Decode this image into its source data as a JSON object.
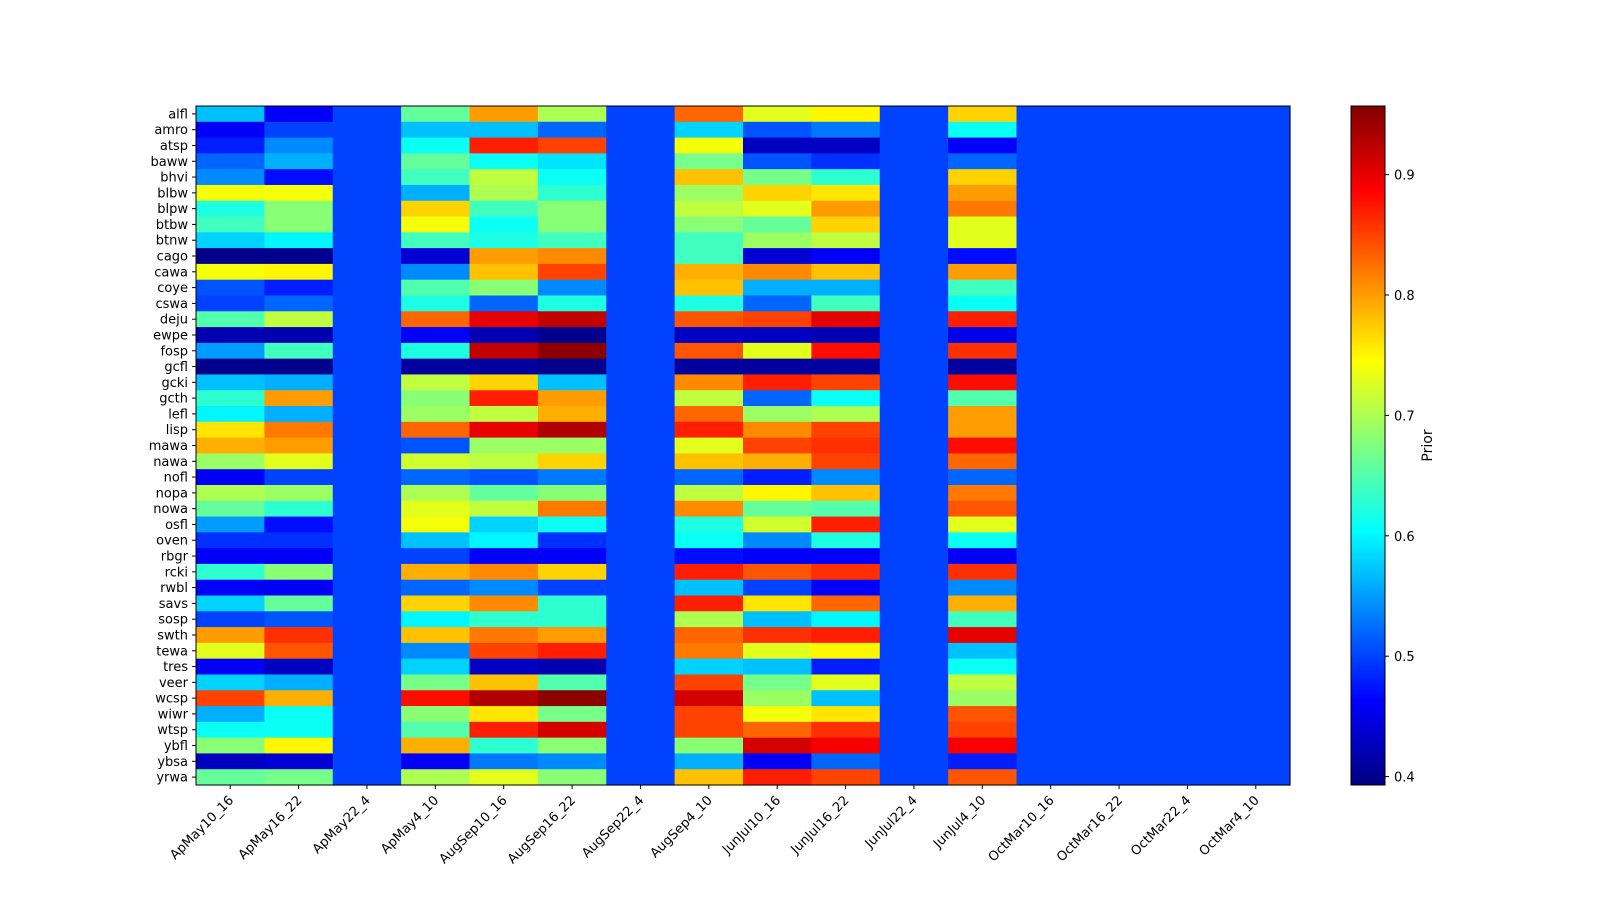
{
  "chart_data": {
    "type": "heatmap",
    "title": "",
    "xlabel": "",
    "ylabel": "",
    "colormap": "jet",
    "colorbar": {
      "label": "Prior",
      "range": [
        0.393,
        0.957
      ],
      "ticks": [
        0.4,
        0.5,
        0.6,
        0.7,
        0.8,
        0.9
      ],
      "tick_labels": [
        "0.4",
        "0.5",
        "0.6",
        "0.7",
        "0.8",
        "0.9"
      ]
    },
    "x_categories": [
      "ApMay10_16",
      "ApMay16_22",
      "ApMay22_4",
      "ApMay4_10",
      "AugSep10_16",
      "AugSep16_22",
      "AugSep22_4",
      "AugSep4_10",
      "JunJul10_16",
      "JunJul16_22",
      "JunJul22_4",
      "JunJul4_10",
      "OctMar10_16",
      "OctMar16_22",
      "OctMar22_4",
      "OctMar4_10"
    ],
    "y_categories": [
      "alfl",
      "amro",
      "atsp",
      "baww",
      "bhvi",
      "blbw",
      "blpw",
      "btbw",
      "btnw",
      "cago",
      "cawa",
      "coye",
      "cswa",
      "deju",
      "ewpe",
      "fosp",
      "gcfl",
      "gcki",
      "gcth",
      "lefl",
      "lisp",
      "mawa",
      "nawa",
      "nofl",
      "nopa",
      "nowa",
      "osfl",
      "oven",
      "rbgr",
      "rcki",
      "rwbl",
      "savs",
      "sosp",
      "swth",
      "tewa",
      "tres",
      "veer",
      "wcsp",
      "wiwr",
      "wtsp",
      "ybfl",
      "ybsa",
      "yrwa"
    ],
    "values": [
      [
        0.57,
        0.46,
        0.5,
        0.66,
        0.8,
        0.7,
        0.5,
        0.83,
        0.73,
        0.75,
        0.5,
        0.77,
        0.5,
        0.5,
        0.5,
        0.5
      ],
      [
        0.46,
        0.5,
        0.5,
        0.57,
        0.57,
        0.52,
        0.5,
        0.58,
        0.51,
        0.53,
        0.5,
        0.61,
        0.5,
        0.5,
        0.5,
        0.5
      ],
      [
        0.48,
        0.54,
        0.5,
        0.61,
        0.87,
        0.85,
        0.5,
        0.74,
        0.43,
        0.43,
        0.5,
        0.46,
        0.5,
        0.5,
        0.5,
        0.5
      ],
      [
        0.52,
        0.56,
        0.5,
        0.66,
        0.61,
        0.59,
        0.5,
        0.67,
        0.51,
        0.49,
        0.5,
        0.52,
        0.5,
        0.5,
        0.5,
        0.5
      ],
      [
        0.54,
        0.47,
        0.5,
        0.64,
        0.71,
        0.61,
        0.5,
        0.78,
        0.67,
        0.63,
        0.5,
        0.77,
        0.5,
        0.5,
        0.5,
        0.5
      ],
      [
        0.74,
        0.74,
        0.5,
        0.56,
        0.7,
        0.63,
        0.5,
        0.69,
        0.77,
        0.76,
        0.5,
        0.8,
        0.5,
        0.5,
        0.5,
        0.5
      ],
      [
        0.62,
        0.68,
        0.5,
        0.77,
        0.64,
        0.68,
        0.5,
        0.71,
        0.73,
        0.8,
        0.5,
        0.82,
        0.5,
        0.5,
        0.5,
        0.5
      ],
      [
        0.64,
        0.68,
        0.5,
        0.74,
        0.61,
        0.68,
        0.5,
        0.68,
        0.66,
        0.77,
        0.5,
        0.73,
        0.5,
        0.5,
        0.5,
        0.5
      ],
      [
        0.58,
        0.6,
        0.5,
        0.64,
        0.62,
        0.64,
        0.5,
        0.64,
        0.69,
        0.71,
        0.5,
        0.73,
        0.5,
        0.5,
        0.5,
        0.5
      ],
      [
        0.4,
        0.4,
        0.5,
        0.44,
        0.8,
        0.81,
        0.5,
        0.64,
        0.44,
        0.46,
        0.5,
        0.47,
        0.5,
        0.5,
        0.5,
        0.5
      ],
      [
        0.74,
        0.75,
        0.5,
        0.54,
        0.78,
        0.85,
        0.5,
        0.79,
        0.81,
        0.78,
        0.5,
        0.8,
        0.5,
        0.5,
        0.5,
        0.5
      ],
      [
        0.51,
        0.48,
        0.5,
        0.65,
        0.68,
        0.54,
        0.5,
        0.78,
        0.56,
        0.56,
        0.5,
        0.64,
        0.5,
        0.5,
        0.5,
        0.5
      ],
      [
        0.5,
        0.52,
        0.5,
        0.62,
        0.52,
        0.62,
        0.5,
        0.62,
        0.52,
        0.64,
        0.5,
        0.61,
        0.5,
        0.5,
        0.5,
        0.5
      ],
      [
        0.65,
        0.71,
        0.5,
        0.83,
        0.9,
        0.92,
        0.5,
        0.84,
        0.85,
        0.9,
        0.5,
        0.87,
        0.5,
        0.5,
        0.5,
        0.5
      ],
      [
        0.42,
        0.42,
        0.5,
        0.46,
        0.42,
        0.4,
        0.5,
        0.43,
        0.43,
        0.42,
        0.5,
        0.45,
        0.5,
        0.5,
        0.5,
        0.5
      ],
      [
        0.55,
        0.64,
        0.5,
        0.62,
        0.92,
        0.95,
        0.5,
        0.84,
        0.73,
        0.88,
        0.5,
        0.86,
        0.5,
        0.5,
        0.5,
        0.5
      ],
      [
        0.4,
        0.4,
        0.5,
        0.41,
        0.41,
        0.4,
        0.5,
        0.41,
        0.41,
        0.41,
        0.5,
        0.41,
        0.5,
        0.5,
        0.5,
        0.5
      ],
      [
        0.57,
        0.56,
        0.5,
        0.71,
        0.77,
        0.57,
        0.5,
        0.81,
        0.87,
        0.85,
        0.5,
        0.88,
        0.5,
        0.5,
        0.5,
        0.5
      ],
      [
        0.63,
        0.8,
        0.5,
        0.68,
        0.87,
        0.8,
        0.5,
        0.71,
        0.52,
        0.61,
        0.5,
        0.65,
        0.5,
        0.5,
        0.5,
        0.5
      ],
      [
        0.6,
        0.56,
        0.5,
        0.69,
        0.71,
        0.79,
        0.5,
        0.83,
        0.69,
        0.7,
        0.5,
        0.8,
        0.5,
        0.5,
        0.5,
        0.5
      ],
      [
        0.76,
        0.82,
        0.5,
        0.83,
        0.9,
        0.93,
        0.5,
        0.87,
        0.81,
        0.85,
        0.5,
        0.8,
        0.5,
        0.5,
        0.5,
        0.5
      ],
      [
        0.79,
        0.8,
        0.5,
        0.51,
        0.69,
        0.69,
        0.5,
        0.73,
        0.85,
        0.86,
        0.5,
        0.88,
        0.5,
        0.5,
        0.5,
        0.5
      ],
      [
        0.69,
        0.73,
        0.5,
        0.72,
        0.71,
        0.77,
        0.5,
        0.78,
        0.79,
        0.85,
        0.5,
        0.83,
        0.5,
        0.5,
        0.5,
        0.5
      ],
      [
        0.46,
        0.5,
        0.5,
        0.52,
        0.51,
        0.53,
        0.5,
        0.52,
        0.48,
        0.54,
        0.5,
        0.52,
        0.5,
        0.5,
        0.5,
        0.5
      ],
      [
        0.7,
        0.69,
        0.5,
        0.7,
        0.66,
        0.68,
        0.5,
        0.71,
        0.75,
        0.78,
        0.5,
        0.82,
        0.5,
        0.5,
        0.5,
        0.5
      ],
      [
        0.66,
        0.63,
        0.5,
        0.73,
        0.71,
        0.82,
        0.5,
        0.81,
        0.66,
        0.65,
        0.5,
        0.84,
        0.5,
        0.5,
        0.5,
        0.5
      ],
      [
        0.55,
        0.47,
        0.5,
        0.74,
        0.58,
        0.61,
        0.5,
        0.62,
        0.72,
        0.87,
        0.5,
        0.73,
        0.5,
        0.5,
        0.5,
        0.5
      ],
      [
        0.49,
        0.49,
        0.5,
        0.57,
        0.6,
        0.49,
        0.5,
        0.61,
        0.54,
        0.62,
        0.5,
        0.61,
        0.5,
        0.5,
        0.5,
        0.5
      ],
      [
        0.46,
        0.46,
        0.5,
        0.5,
        0.46,
        0.46,
        0.5,
        0.47,
        0.46,
        0.46,
        0.5,
        0.46,
        0.5,
        0.5,
        0.5,
        0.5
      ],
      [
        0.63,
        0.68,
        0.5,
        0.79,
        0.81,
        0.77,
        0.5,
        0.87,
        0.84,
        0.86,
        0.5,
        0.86,
        0.5,
        0.5,
        0.5,
        0.5
      ],
      [
        0.46,
        0.46,
        0.5,
        0.52,
        0.54,
        0.5,
        0.5,
        0.57,
        0.5,
        0.46,
        0.5,
        0.54,
        0.5,
        0.5,
        0.5,
        0.5
      ],
      [
        0.58,
        0.66,
        0.5,
        0.77,
        0.81,
        0.63,
        0.5,
        0.87,
        0.76,
        0.83,
        0.5,
        0.79,
        0.5,
        0.5,
        0.5,
        0.5
      ],
      [
        0.5,
        0.51,
        0.5,
        0.6,
        0.63,
        0.63,
        0.5,
        0.7,
        0.57,
        0.6,
        0.5,
        0.64,
        0.5,
        0.5,
        0.5,
        0.5
      ],
      [
        0.8,
        0.86,
        0.5,
        0.78,
        0.82,
        0.8,
        0.5,
        0.83,
        0.86,
        0.87,
        0.5,
        0.9,
        0.5,
        0.5,
        0.5,
        0.5
      ],
      [
        0.73,
        0.84,
        0.5,
        0.54,
        0.85,
        0.87,
        0.5,
        0.82,
        0.73,
        0.75,
        0.5,
        0.57,
        0.5,
        0.5,
        0.5,
        0.5
      ],
      [
        0.46,
        0.43,
        0.5,
        0.58,
        0.43,
        0.42,
        0.5,
        0.58,
        0.57,
        0.48,
        0.5,
        0.61,
        0.5,
        0.5,
        0.5,
        0.5
      ],
      [
        0.58,
        0.56,
        0.5,
        0.67,
        0.78,
        0.65,
        0.5,
        0.85,
        0.67,
        0.73,
        0.5,
        0.71,
        0.5,
        0.5,
        0.5,
        0.5
      ],
      [
        0.85,
        0.79,
        0.5,
        0.88,
        0.93,
        0.95,
        0.5,
        0.91,
        0.69,
        0.57,
        0.5,
        0.69,
        0.5,
        0.5,
        0.5,
        0.5
      ],
      [
        0.56,
        0.61,
        0.5,
        0.68,
        0.76,
        0.67,
        0.5,
        0.85,
        0.74,
        0.76,
        0.5,
        0.84,
        0.5,
        0.5,
        0.5,
        0.5
      ],
      [
        0.61,
        0.61,
        0.5,
        0.65,
        0.87,
        0.91,
        0.5,
        0.85,
        0.83,
        0.86,
        0.5,
        0.85,
        0.5,
        0.5,
        0.5,
        0.5
      ],
      [
        0.68,
        0.75,
        0.5,
        0.79,
        0.63,
        0.68,
        0.5,
        0.68,
        0.91,
        0.89,
        0.5,
        0.89,
        0.5,
        0.5,
        0.5,
        0.5
      ],
      [
        0.43,
        0.44,
        0.5,
        0.46,
        0.53,
        0.54,
        0.5,
        0.56,
        0.46,
        0.52,
        0.5,
        0.48,
        0.5,
        0.5,
        0.5,
        0.5
      ],
      [
        0.66,
        0.67,
        0.5,
        0.7,
        0.73,
        0.68,
        0.5,
        0.78,
        0.87,
        0.85,
        0.5,
        0.84,
        0.5,
        0.5,
        0.5,
        0.5
      ]
    ],
    "grid": false
  }
}
